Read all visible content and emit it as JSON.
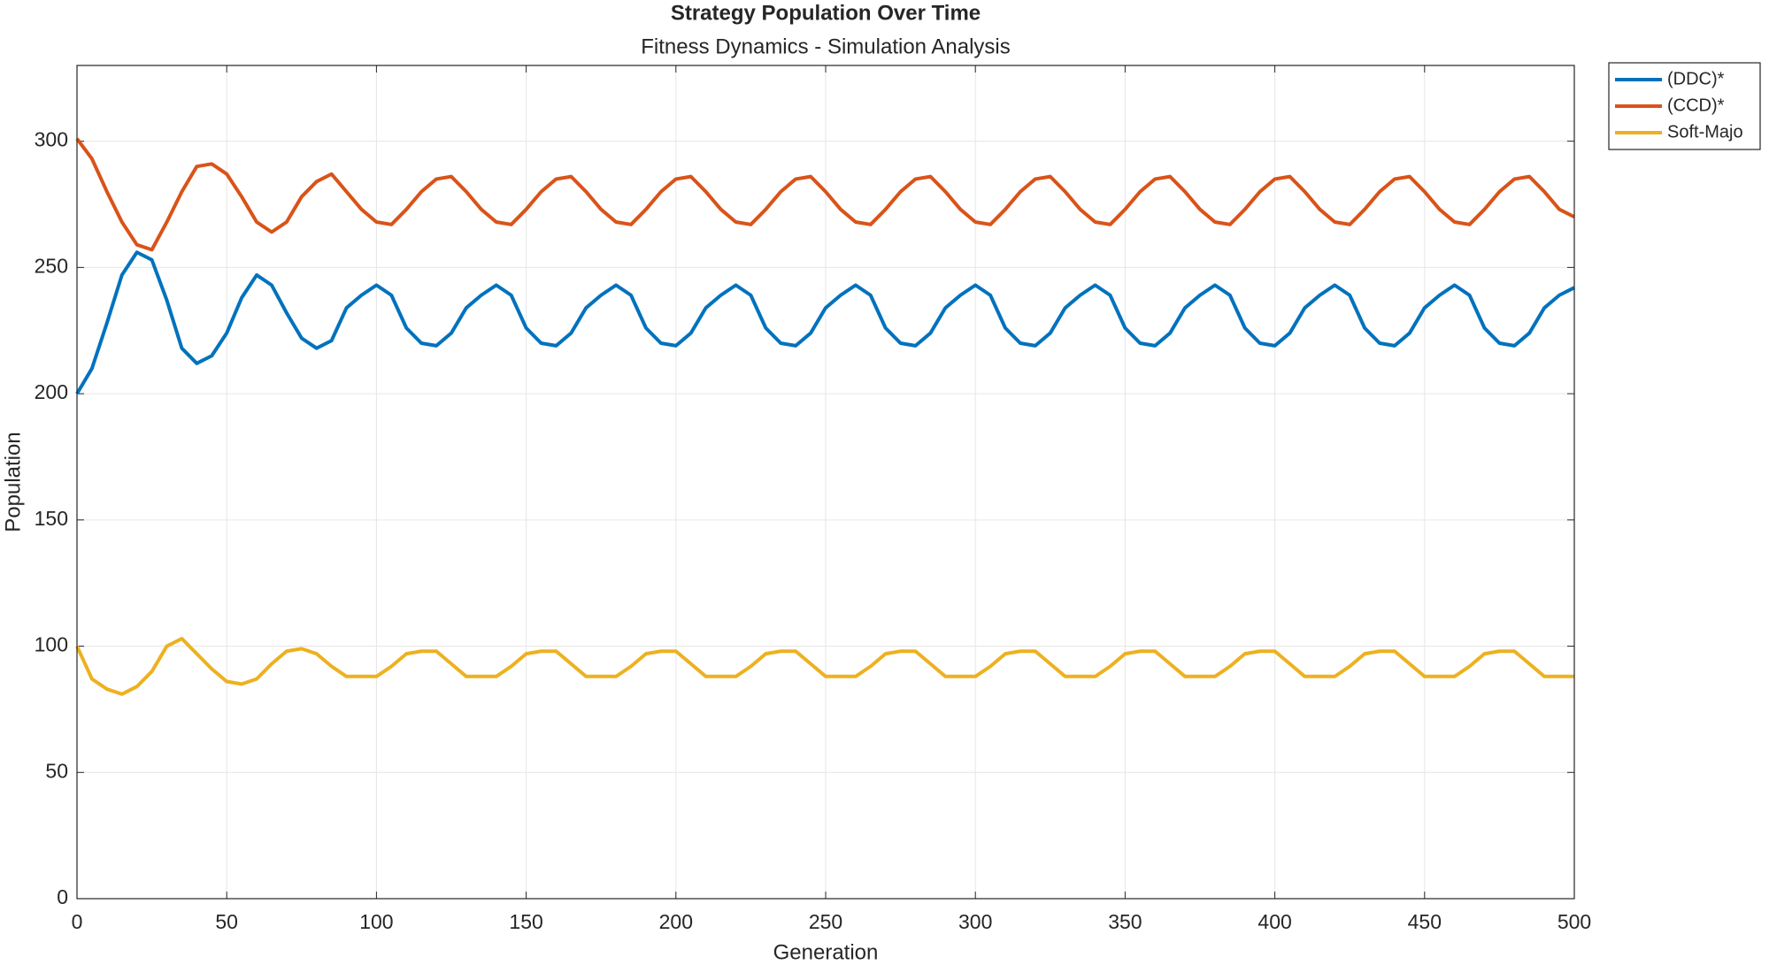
{
  "chart_data": {
    "type": "line",
    "title": "Strategy Population Over Time",
    "subtitle": "Fitness Dynamics - Simulation Analysis",
    "xlabel": "Generation",
    "ylabel": "Population",
    "x": [
      0,
      5,
      10,
      15,
      20,
      25,
      30,
      35,
      40,
      45,
      50,
      55,
      60,
      65,
      70,
      75,
      80,
      85,
      90,
      95,
      100,
      105,
      110,
      115,
      120,
      125,
      130,
      135,
      140,
      145,
      150,
      155,
      160,
      165,
      170,
      175,
      180,
      185,
      190,
      195,
      200,
      205,
      210,
      215,
      220,
      225,
      230,
      235,
      240,
      245,
      250,
      255,
      260,
      265,
      270,
      275,
      280,
      285,
      290,
      295,
      300,
      305,
      310,
      315,
      320,
      325,
      330,
      335,
      340,
      345,
      350,
      355,
      360,
      365,
      370,
      375,
      380,
      385,
      390,
      395,
      400,
      405,
      410,
      415,
      420,
      425,
      430,
      435,
      440,
      445,
      450,
      455,
      460,
      465,
      470,
      475,
      480,
      485,
      490,
      495,
      500
    ],
    "series": [
      {
        "name": "(DDC)*",
        "color": "#0072BD",
        "values": [
          200,
          210,
          228,
          247,
          256,
          253,
          237,
          218,
          212,
          215,
          224,
          238,
          247,
          243,
          232,
          222,
          218,
          221,
          234,
          239,
          243,
          239,
          226,
          220,
          219,
          224,
          234,
          239,
          243,
          239,
          226,
          220,
          219,
          224,
          234,
          239,
          243,
          239,
          226,
          220,
          219,
          224,
          234,
          239,
          243,
          239,
          226,
          220,
          219,
          224,
          234,
          239,
          243,
          239,
          226,
          220,
          219,
          224,
          234,
          239,
          243,
          239,
          226,
          220,
          219,
          224,
          234,
          239,
          243,
          239,
          226,
          220,
          219,
          224,
          234,
          239,
          243,
          239,
          226,
          220,
          219,
          224,
          234,
          239,
          243,
          239,
          226,
          220,
          219,
          224,
          234,
          239,
          243,
          239,
          226,
          220,
          219,
          224,
          234,
          239,
          242
        ]
      },
      {
        "name": "(CCD)*",
        "color": "#D95319",
        "values": [
          301,
          293,
          280,
          268,
          259,
          257,
          268,
          280,
          290,
          291,
          287,
          278,
          268,
          264,
          268,
          278,
          284,
          287,
          280,
          273,
          268,
          267,
          273,
          280,
          285,
          286,
          280,
          273,
          268,
          267,
          273,
          280,
          285,
          286,
          280,
          273,
          268,
          267,
          273,
          280,
          285,
          286,
          280,
          273,
          268,
          267,
          273,
          280,
          285,
          286,
          280,
          273,
          268,
          267,
          273,
          280,
          285,
          286,
          280,
          273,
          268,
          267,
          273,
          280,
          285,
          286,
          280,
          273,
          268,
          267,
          273,
          280,
          285,
          286,
          280,
          273,
          268,
          267,
          273,
          280,
          285,
          286,
          280,
          273,
          268,
          267,
          273,
          280,
          285,
          286,
          280,
          273,
          268,
          267,
          273,
          280,
          285,
          286,
          280,
          273,
          270
        ]
      },
      {
        "name": "Soft-Majo",
        "color": "#EDB120",
        "values": [
          100,
          87,
          83,
          81,
          84,
          90,
          100,
          103,
          97,
          91,
          86,
          85,
          87,
          93,
          98,
          99,
          97,
          92,
          88,
          88,
          88,
          92,
          97,
          98,
          98,
          93,
          88,
          88,
          88,
          92,
          97,
          98,
          98,
          93,
          88,
          88,
          88,
          92,
          97,
          98,
          98,
          93,
          88,
          88,
          88,
          92,
          97,
          98,
          98,
          93,
          88,
          88,
          88,
          92,
          97,
          98,
          98,
          93,
          88,
          88,
          88,
          92,
          97,
          98,
          98,
          93,
          88,
          88,
          88,
          92,
          97,
          98,
          98,
          93,
          88,
          88,
          88,
          92,
          97,
          98,
          98,
          93,
          88,
          88,
          88,
          92,
          97,
          98,
          98,
          93,
          88,
          88,
          88,
          92,
          97,
          98,
          98,
          93,
          88,
          88,
          88
        ]
      }
    ],
    "xlim": [
      0,
      500
    ],
    "xticks": [
      0,
      50,
      100,
      150,
      200,
      250,
      300,
      350,
      400,
      450,
      500
    ],
    "ylim": [
      0,
      330
    ],
    "yticks": [
      0,
      50,
      100,
      150,
      200,
      250,
      300
    ],
    "grid": true,
    "legend": "outside-top-right"
  }
}
